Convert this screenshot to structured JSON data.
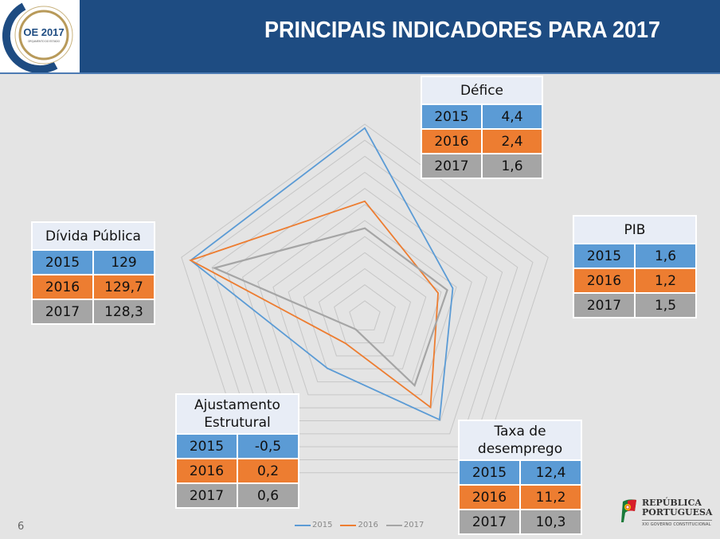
{
  "header": {
    "title": "PRINCIPAIS INDICADORES PARA 2017",
    "logo_text": "OE 2017",
    "logo_subtext": "ORÇAMENTO DO ESTADO"
  },
  "footer": {
    "page_number": "6",
    "brand_line1": "REPÚBLICA",
    "brand_line2": "PORTUGUESA",
    "brand_sub": "XXI GOVERNO CONSTITUCIONAL"
  },
  "colors": {
    "header_bg": "#1e4c82",
    "s2015": "#5b9bd5",
    "s2016": "#ed7d31",
    "s2017": "#a5a5a5"
  },
  "tables": {
    "defice": {
      "title": "Défice",
      "rows": [
        [
          "2015",
          "4,4"
        ],
        [
          "2016",
          "2,4"
        ],
        [
          "2017",
          "1,6"
        ]
      ]
    },
    "pib": {
      "title": "PIB",
      "rows": [
        [
          "2015",
          "1,6"
        ],
        [
          "2016",
          "1,2"
        ],
        [
          "2017",
          "1,5"
        ]
      ]
    },
    "divida": {
      "title": "Dívida Pública",
      "rows": [
        [
          "2015",
          "129"
        ],
        [
          "2016",
          "129,7"
        ],
        [
          "2017",
          "128,3"
        ]
      ]
    },
    "ajustamento": {
      "title_line1": "Ajustamento",
      "title_line2": "Estrutural",
      "rows": [
        [
          "2015",
          "-0,5"
        ],
        [
          "2016",
          "0,2"
        ],
        [
          "2017",
          "0,6"
        ]
      ]
    },
    "taxa": {
      "title_line1": "Taxa de",
      "title_line2": "desemprego",
      "rows": [
        [
          "2015",
          "12,4"
        ],
        [
          "2016",
          "11,2"
        ],
        [
          "2017",
          "10,3"
        ]
      ]
    }
  },
  "chart_data": {
    "type": "radar",
    "title": "",
    "axes": [
      "Défice",
      "PIB",
      "Taxa de desemprego",
      "Ajustamento Estrutural",
      "Dívida Pública"
    ],
    "grid": true,
    "grid_rings": 12,
    "legend_position": "bottom",
    "legend": [
      "2015",
      "2016",
      "2017"
    ],
    "note": "plotted as normalized share of each axis maximum (estimated from image)",
    "series": [
      {
        "name": "2015",
        "values": [
          0.98,
          0.48,
          0.66,
          0.33,
          0.95
        ]
      },
      {
        "name": "2016",
        "values": [
          0.6,
          0.4,
          0.58,
          0.17,
          0.95
        ]
      },
      {
        "name": "2017",
        "values": [
          0.46,
          0.45,
          0.44,
          0.08,
          0.82
        ]
      }
    ]
  }
}
